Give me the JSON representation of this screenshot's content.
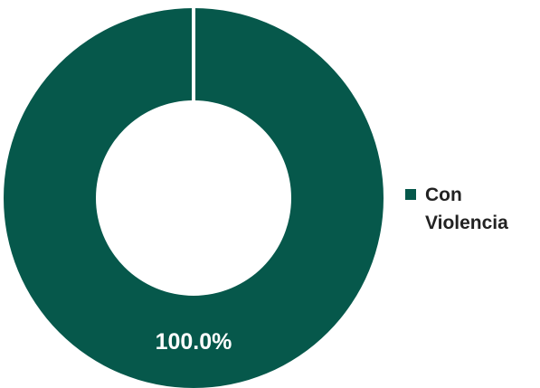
{
  "chart_data": {
    "type": "pie",
    "variant": "donut",
    "categories": [
      "Con Violencia"
    ],
    "values": [
      100.0
    ],
    "data_labels": [
      "100.0%"
    ],
    "colors": [
      "#06584B"
    ],
    "legend": {
      "position": "right",
      "entries": [
        "Con Violencia"
      ]
    }
  }
}
